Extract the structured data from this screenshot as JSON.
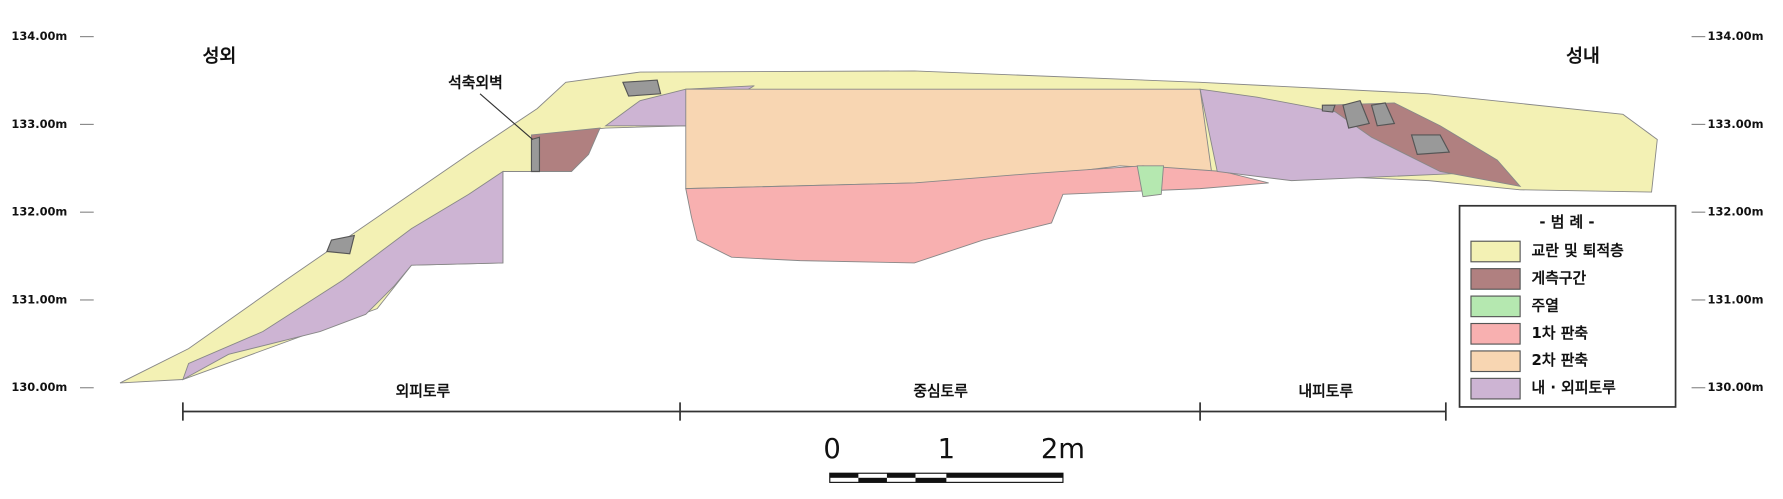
{
  "labels": {
    "outside": "성외",
    "inside": "성내",
    "wall": "석축외벽"
  },
  "elevations_left": [
    "134.00m",
    "133.00m",
    "132.00m",
    "131.00m",
    "130.00m"
  ],
  "elevations_right": [
    "134.00m",
    "133.00m",
    "132.00m",
    "131.00m",
    "130.00m"
  ],
  "sections": [
    "외피토루",
    "중심토루",
    "내피토루"
  ],
  "scale": [
    "0",
    "1",
    "2m"
  ],
  "legend": {
    "title": "- 범  례 -",
    "items": [
      {
        "label": "교란 및 퇴적층",
        "color": "#f3f1b4"
      },
      {
        "label": "게측구간",
        "color": "#b08080"
      },
      {
        "label": "주열",
        "color": "#b5e8b0"
      },
      {
        "label": "1차 판축",
        "color": "#f8b0b0"
      },
      {
        "label": "2차 판축",
        "color": "#f8d6b2"
      },
      {
        "label": "내 · 외피토루",
        "color": "#cdb4d3"
      }
    ]
  }
}
